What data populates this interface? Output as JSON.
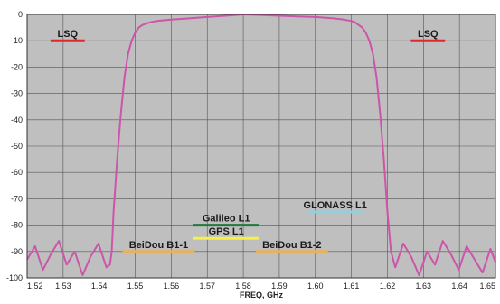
{
  "chart_data": {
    "type": "line",
    "title": "",
    "xlabel": "FREQ, GHz",
    "ylabel": "",
    "xlim": [
      1.52,
      1.65
    ],
    "ylim": [
      -100,
      0
    ],
    "grid": true,
    "x_ticks": [
      "1.52",
      "1.53",
      "1.54",
      "1.55",
      "1.56",
      "1.57",
      "1.58",
      "1.59",
      "1.60",
      "1.61",
      "1.62",
      "1.63",
      "1.64",
      "1.65"
    ],
    "y_ticks": [
      "0",
      "-10",
      "-20",
      "-30",
      "-40",
      "-50",
      "-60",
      "-70",
      "-80",
      "-90",
      "-100"
    ],
    "colors": {
      "plot_background": "#bfbfbf",
      "grid": "#555555",
      "curve": "#cc55aa"
    },
    "series": [
      {
        "x": [
          1.52,
          1.5222,
          1.5244,
          1.5266,
          1.5288,
          1.531,
          1.5332,
          1.5354,
          1.5376,
          1.5398,
          1.542,
          1.543,
          1.5435,
          1.544,
          1.545,
          1.546,
          1.547,
          1.548,
          1.549,
          1.55,
          1.551,
          1.552,
          1.554,
          1.556,
          1.56,
          1.565,
          1.57,
          1.575,
          1.58,
          1.585,
          1.59,
          1.595,
          1.6,
          1.605,
          1.608,
          1.61,
          1.611,
          1.612,
          1.613,
          1.614,
          1.615,
          1.616,
          1.617,
          1.618,
          1.619,
          1.62,
          1.621,
          1.6222,
          1.6244,
          1.6266,
          1.6288,
          1.631,
          1.6332,
          1.6354,
          1.6376,
          1.6398,
          1.642,
          1.6442,
          1.6464,
          1.6486,
          1.65
        ],
        "y": [
          -93,
          -88,
          -97,
          -91,
          -86,
          -95,
          -90,
          -99,
          -92,
          -87,
          -96,
          -95,
          -90,
          -75,
          -55,
          -38,
          -24,
          -15,
          -10,
          -7,
          -5,
          -4,
          -3,
          -2.5,
          -2,
          -1.5,
          -1,
          -0.5,
          0,
          -0.2,
          -0.5,
          -0.8,
          -1,
          -1.5,
          -2,
          -2.5,
          -3,
          -4,
          -5,
          -7,
          -10,
          -15,
          -24,
          -38,
          -55,
          -75,
          -90,
          -96,
          -87,
          -92,
          -99,
          -90,
          -95,
          -86,
          -91,
          -97,
          -88,
          -93,
          -98,
          -89,
          -94
        ]
      }
    ],
    "annotations": [
      {
        "text": "LSQ",
        "x1": 1.5265,
        "x2": 1.536,
        "y": -10,
        "color": "#e02828"
      },
      {
        "text": "LSQ",
        "x1": 1.6265,
        "x2": 1.636,
        "y": -10,
        "color": "#e02828"
      },
      {
        "text": "GLONASS L1",
        "x1": 1.598,
        "x2": 1.613,
        "y": -75,
        "color": "#8fd0dc"
      },
      {
        "text": "Galileo L1",
        "x1": 1.566,
        "x2": 1.5845,
        "y": -80,
        "color": "#1f7a3c"
      },
      {
        "text": "GPS L1",
        "x1": 1.566,
        "x2": 1.5845,
        "y": -85,
        "color": "#f5f04a"
      },
      {
        "text": "BeiDou B1-1",
        "x1": 1.5465,
        "x2": 1.5665,
        "y": -90,
        "color": "#e8b25a"
      },
      {
        "text": "BeiDou B1-2",
        "x1": 1.5835,
        "x2": 1.6035,
        "y": -90,
        "color": "#e8b25a"
      }
    ]
  }
}
